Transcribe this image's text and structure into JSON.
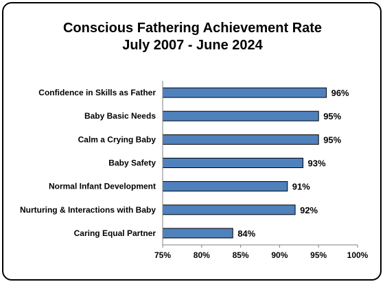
{
  "chart_data": {
    "type": "bar",
    "orientation": "horizontal",
    "title": "Conscious Fathering Achievement Rate",
    "subtitle": "July 2007 - June 2024",
    "categories": [
      "Confidence in Skills as Father",
      "Baby Basic Needs",
      "Calm a Crying Baby",
      "Baby Safety",
      "Normal Infant Development",
      "Nurturing & Interactions with Baby",
      "Caring Equal Partner"
    ],
    "values": [
      96,
      95,
      95,
      93,
      91,
      92,
      84
    ],
    "data_labels": [
      "96%",
      "95%",
      "95%",
      "93%",
      "91%",
      "92%",
      "84%"
    ],
    "xlim": [
      75,
      100
    ],
    "x_ticks": [
      75,
      80,
      85,
      90,
      95,
      100
    ],
    "x_tick_labels": [
      "75%",
      "80%",
      "85%",
      "90%",
      "95%",
      "100%"
    ],
    "grid": false,
    "legend": "none",
    "bar_color": "#4f81bd"
  }
}
